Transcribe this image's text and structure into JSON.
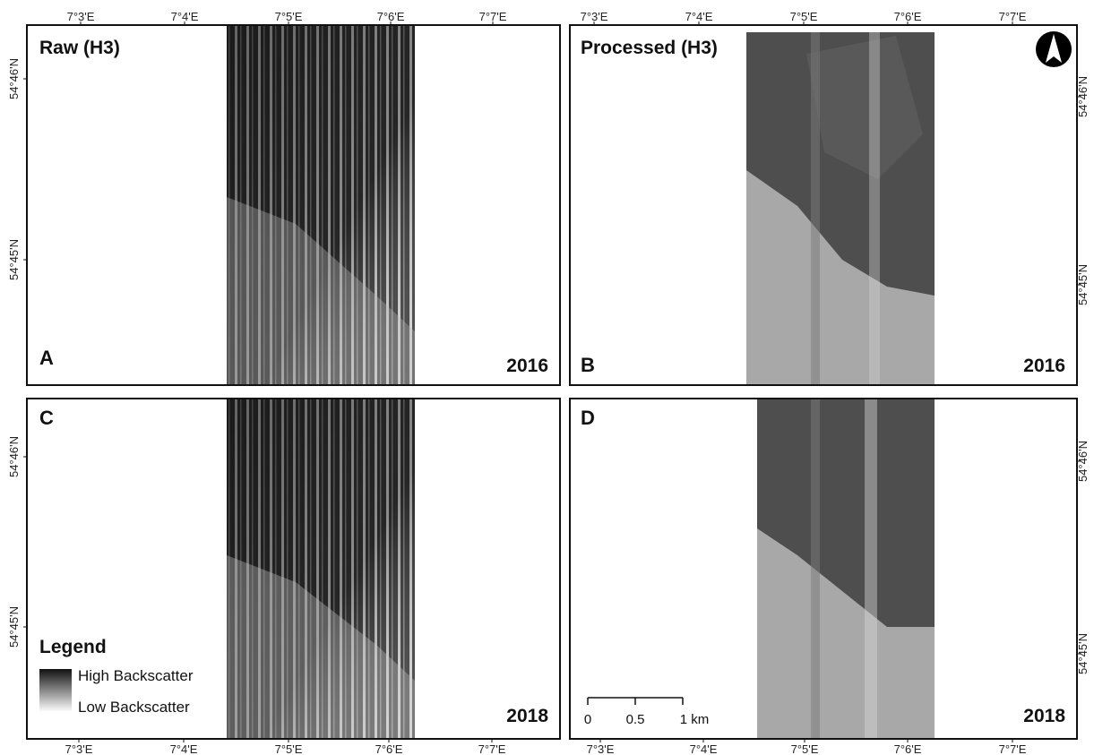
{
  "panels": [
    {
      "letter": "A",
      "title": "Raw (H3)",
      "year": "2016"
    },
    {
      "letter": "B",
      "title": "Processed (H3)",
      "year": "2016"
    },
    {
      "letter": "C",
      "year": "2018"
    },
    {
      "letter": "D",
      "year": "2018"
    }
  ],
  "axes": {
    "top_a": [
      "7°3'E",
      "7°4'E",
      "7°5'E",
      "7°6'E",
      "7°7'E"
    ],
    "top_b": [
      "7°3'E",
      "7°4'E",
      "7°5'E",
      "7°6'E",
      "7°7'E"
    ],
    "bottom_c": [
      "7°3'E",
      "7°4'E",
      "7°5'E",
      "7°6'E",
      "7°7'E"
    ],
    "bottom_d": [
      "7°3'E",
      "7°4'E",
      "7°5'E",
      "7°6'E",
      "7°7'E"
    ],
    "left_a": [
      "54°46'N",
      "54°45'N"
    ],
    "right_b": [
      "54°46'N",
      "54°45'N"
    ],
    "left_c": [
      "54°46'N",
      "54°45'N"
    ],
    "right_d": [
      "54°46'N",
      "54°45'N"
    ]
  },
  "legend": {
    "title": "Legend",
    "high": "High Backscatter",
    "low": "Low Backscatter"
  },
  "scale_bar": {
    "labels": [
      "0",
      "0.5",
      "1 km"
    ]
  }
}
